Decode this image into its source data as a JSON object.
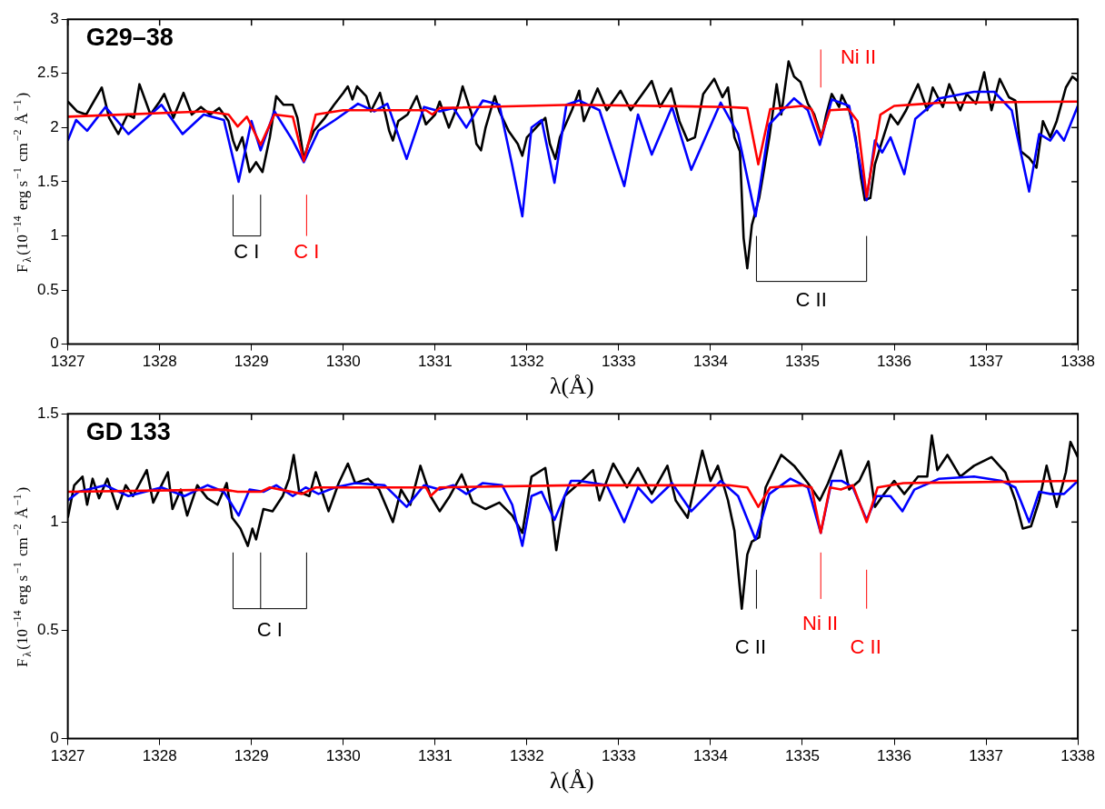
{
  "chart_data": [
    {
      "type": "line",
      "title": "G29–38",
      "xlabel": "λ(Å)",
      "ylabel": "F$_{λ}$(10$^{−14}$ erg s$^{−1}$ cm$^{−2}$ Å$^{−1}$)",
      "xlim": [
        1327,
        1338
      ],
      "xticks": [
        1327,
        1328,
        1329,
        1330,
        1331,
        1332,
        1333,
        1334,
        1335,
        1336,
        1337,
        1338
      ],
      "ylim": [
        0,
        3
      ],
      "yticks": [
        0,
        0.5,
        1,
        1.5,
        2,
        2.5,
        3
      ],
      "legend": false,
      "annotations": [
        "C I",
        "C I",
        "C II",
        "Ni II"
      ],
      "series": [
        {
          "color": "#000000",
          "x": [
            1327,
            1327.1,
            1327.2,
            1327.37,
            1327.45,
            1327.55,
            1327.65,
            1327.72,
            1327.78,
            1327.9,
            1328,
            1328.05,
            1328.15,
            1328.26,
            1328.35,
            1328.45,
            1328.55,
            1328.65,
            1328.75,
            1328.8,
            1328.84,
            1328.9,
            1328.95,
            1328.98,
            1329.05,
            1329.12,
            1329.2,
            1329.27,
            1329.35,
            1329.45,
            1329.5,
            1329.54,
            1329.57,
            1329.62,
            1329.68,
            1329.8,
            1329.9,
            1330,
            1330.05,
            1330.1,
            1330.15,
            1330.25,
            1330.3,
            1330.4,
            1330.46,
            1330.5,
            1330.54,
            1330.6,
            1330.7,
            1330.8,
            1330.9,
            1331,
            1331.05,
            1331.15,
            1331.25,
            1331.3,
            1331.4,
            1331.45,
            1331.5,
            1331.55,
            1331.65,
            1331.7,
            1331.8,
            1331.9,
            1331.95,
            1332,
            1332.1,
            1332.2,
            1332.25,
            1332.31,
            1332.36,
            1332.49,
            1332.57,
            1332.62,
            1332.77,
            1332.87,
            1333.02,
            1333.13,
            1333.36,
            1333.45,
            1333.57,
            1333.66,
            1333.75,
            1333.83,
            1333.92,
            1334.04,
            1334.13,
            1334.19,
            1334.26,
            1334.32,
            1334.36,
            1334.4,
            1334.45,
            1334.53,
            1334.58,
            1334.64,
            1334.72,
            1334.77,
            1334.85,
            1334.91,
            1334.98,
            1335.06,
            1335.13,
            1335.21,
            1335.26,
            1335.32,
            1335.4,
            1335.43,
            1335.51,
            1335.58,
            1335.64,
            1335.68,
            1335.74,
            1335.79,
            1335.87,
            1335.96,
            1336.04,
            1336.13,
            1336.21,
            1336.26,
            1336.36,
            1336.42,
            1336.53,
            1336.6,
            1336.72,
            1336.79,
            1336.89,
            1336.98,
            1337.06,
            1337.15,
            1337.25,
            1337.32,
            1337.38,
            1337.47,
            1337.55,
            1337.62,
            1337.7,
            1337.77,
            1337.87,
            1337.94,
            1338
          ],
          "values": [
            2.24,
            2.15,
            2.12,
            2.37,
            2.09,
            1.94,
            2.12,
            2.09,
            2.4,
            2.12,
            2.24,
            2.31,
            2.09,
            2.32,
            2.12,
            2.19,
            2.12,
            2.18,
            2.06,
            1.88,
            1.79,
            1.91,
            1.71,
            1.59,
            1.68,
            1.59,
            1.91,
            2.29,
            2.21,
            2.21,
            2.09,
            1.88,
            1.71,
            1.85,
            1.97,
            2.09,
            2.21,
            2.32,
            2.38,
            2.26,
            2.38,
            2.29,
            2.15,
            2.32,
            2.12,
            1.97,
            1.88,
            2.06,
            2.12,
            2.29,
            2.03,
            2.12,
            2.24,
            2.0,
            2.21,
            2.38,
            2.12,
            1.85,
            1.79,
            2.0,
            2.29,
            2.15,
            1.97,
            1.85,
            1.74,
            1.91,
            2.0,
            2.09,
            1.85,
            1.71,
            1.91,
            2.16,
            2.34,
            2.06,
            2.36,
            2.16,
            2.34,
            2.16,
            2.43,
            2.19,
            2.36,
            2.06,
            1.88,
            1.91,
            2.31,
            2.45,
            2.28,
            2.37,
            1.91,
            1.78,
            0.98,
            0.7,
            1.1,
            1.35,
            1.6,
            1.91,
            2.4,
            2.12,
            2.61,
            2.47,
            2.42,
            2.22,
            2.12,
            1.91,
            2.12,
            2.31,
            2.19,
            2.3,
            2.16,
            1.91,
            1.53,
            1.33,
            1.35,
            1.66,
            1.88,
            2.12,
            2.03,
            2.16,
            2.31,
            2.4,
            2.16,
            2.37,
            2.19,
            2.4,
            2.16,
            2.31,
            2.22,
            2.51,
            2.16,
            2.45,
            2.28,
            2.25,
            1.78,
            1.72,
            1.63,
            2.06,
            1.91,
            2.06,
            2.37,
            2.47,
            2.43
          ]
        },
        {
          "color": "#0000ff",
          "x": [
            1327,
            1327.09,
            1327.21,
            1327.41,
            1327.66,
            1328.02,
            1328.25,
            1328.48,
            1328.7,
            1328.86,
            1329,
            1329.1,
            1329.25,
            1329.45,
            1329.57,
            1329.73,
            1329.91,
            1330.16,
            1330.34,
            1330.48,
            1330.69,
            1330.88,
            1331.05,
            1331.2,
            1331.34,
            1331.52,
            1331.7,
            1331.84,
            1331.95,
            1332.05,
            1332.16,
            1332.3,
            1332.43,
            1332.57,
            1332.79,
            1333.06,
            1333.21,
            1333.36,
            1333.58,
            1333.79,
            1334.11,
            1334.3,
            1334.49,
            1334.64,
            1334.91,
            1335.06,
            1335.19,
            1335.32,
            1335.51,
            1335.7,
            1335.79,
            1335.87,
            1335.96,
            1336.11,
            1336.23,
            1336.49,
            1336.87,
            1337.09,
            1337.28,
            1337.47,
            1337.58,
            1337.7,
            1337.77,
            1337.85,
            1338
          ],
          "values": [
            1.88,
            2.07,
            1.97,
            2.19,
            1.94,
            2.21,
            1.94,
            2.12,
            2.07,
            1.5,
            2.06,
            1.79,
            2.15,
            1.88,
            1.68,
            1.97,
            2.07,
            2.22,
            2.15,
            2.22,
            1.71,
            2.19,
            2.15,
            2.18,
            2.0,
            2.25,
            2.21,
            1.65,
            1.18,
            2.0,
            2.07,
            1.49,
            2.21,
            2.25,
            2.16,
            1.46,
            2.12,
            1.75,
            2.19,
            1.61,
            2.23,
            1.94,
            1.18,
            2.03,
            2.27,
            2.16,
            1.84,
            2.26,
            2.2,
            1.33,
            1.88,
            1.77,
            1.91,
            1.57,
            2.08,
            2.27,
            2.33,
            2.33,
            2.16,
            1.41,
            1.94,
            1.88,
            1.97,
            1.88,
            2.2
          ]
        },
        {
          "color": "#ff0000",
          "x": [
            1327,
            1328.5,
            1328.75,
            1328.85,
            1328.95,
            1329.1,
            1329.25,
            1329.45,
            1329.57,
            1329.7,
            1330,
            1330.9,
            1330.97,
            1331.05,
            1332.5,
            1334.2,
            1334.4,
            1334.52,
            1334.65,
            1335,
            1335.1,
            1335.2,
            1335.3,
            1335.5,
            1335.6,
            1335.7,
            1335.85,
            1336,
            1336.5,
            1338
          ],
          "values": [
            2.1,
            2.15,
            2.12,
            2.01,
            2.1,
            1.84,
            2.12,
            2.1,
            1.69,
            2.12,
            2.16,
            2.16,
            2.12,
            2.18,
            2.21,
            2.19,
            2.18,
            1.66,
            2.17,
            2.2,
            2.17,
            1.91,
            2.16,
            2.17,
            2.06,
            1.36,
            2.12,
            2.2,
            2.23,
            2.24
          ]
        }
      ]
    },
    {
      "type": "line",
      "title": "GD 133",
      "xlabel": "λ(Å)",
      "ylabel": "F$_{λ}$(10$^{−14}$ erg s$^{−1}$ cm$^{−2}$ Å$^{−1}$)",
      "xlim": [
        1327,
        1338
      ],
      "xticks": [
        1327,
        1328,
        1329,
        1330,
        1331,
        1332,
        1333,
        1334,
        1335,
        1336,
        1337,
        1338
      ],
      "ylim": [
        0,
        1.5
      ],
      "yticks": [
        0,
        0.5,
        1,
        1.5
      ],
      "legend": false,
      "annotations": [
        "C I",
        "C II",
        "Ni II",
        "C II"
      ],
      "series": [
        {
          "color": "#000000",
          "x": [
            1327,
            1327.07,
            1327.16,
            1327.21,
            1327.27,
            1327.34,
            1327.43,
            1327.54,
            1327.63,
            1327.71,
            1327.86,
            1327.93,
            1328.02,
            1328.09,
            1328.14,
            1328.23,
            1328.3,
            1328.41,
            1328.52,
            1328.63,
            1328.73,
            1328.79,
            1328.88,
            1328.96,
            1329.01,
            1329.05,
            1329.13,
            1329.23,
            1329.34,
            1329.41,
            1329.46,
            1329.52,
            1329.63,
            1329.7,
            1329.77,
            1329.84,
            1329.95,
            1330.05,
            1330.13,
            1330.27,
            1330.39,
            1330.48,
            1330.54,
            1330.63,
            1330.73,
            1330.84,
            1330.95,
            1331.05,
            1331.16,
            1331.29,
            1331.41,
            1331.55,
            1331.7,
            1331.84,
            1331.95,
            1332.05,
            1332.2,
            1332.27,
            1332.32,
            1332.41,
            1332.57,
            1332.72,
            1332.79,
            1332.94,
            1333.09,
            1333.21,
            1333.36,
            1333.53,
            1333.62,
            1333.75,
            1333.91,
            1334,
            1334.08,
            1334.19,
            1334.26,
            1334.34,
            1334.4,
            1334.45,
            1334.53,
            1334.6,
            1334.77,
            1334.91,
            1335.06,
            1335.19,
            1335.28,
            1335.42,
            1335.51,
            1335.62,
            1335.72,
            1335.79,
            1335.89,
            1336,
            1336.11,
            1336.26,
            1336.36,
            1336.41,
            1336.47,
            1336.58,
            1336.72,
            1336.87,
            1337.06,
            1337.21,
            1337.32,
            1337.4,
            1337.49,
            1337.58,
            1337.66,
            1337.77,
            1337.87,
            1337.92,
            1338
          ],
          "values": [
            1.02,
            1.17,
            1.21,
            1.08,
            1.2,
            1.11,
            1.2,
            1.06,
            1.17,
            1.12,
            1.24,
            1.09,
            1.17,
            1.23,
            1.06,
            1.15,
            1.03,
            1.17,
            1.11,
            1.08,
            1.18,
            1.02,
            0.97,
            0.89,
            0.97,
            0.92,
            1.06,
            1.05,
            1.12,
            1.2,
            1.31,
            1.14,
            1.12,
            1.23,
            1.14,
            1.05,
            1.18,
            1.27,
            1.18,
            1.2,
            1.15,
            1.06,
            1.0,
            1.15,
            1.08,
            1.26,
            1.12,
            1.05,
            1.12,
            1.22,
            1.09,
            1.06,
            1.09,
            1.03,
            0.95,
            1.21,
            1.25,
            1.05,
            0.87,
            1.12,
            1.18,
            1.24,
            1.1,
            1.27,
            1.16,
            1.25,
            1.13,
            1.26,
            1.1,
            1.02,
            1.33,
            1.19,
            1.26,
            1.1,
            0.96,
            0.6,
            0.85,
            0.91,
            0.93,
            1.16,
            1.31,
            1.26,
            1.18,
            1.1,
            1.18,
            1.33,
            1.15,
            1.19,
            1.28,
            1.07,
            1.13,
            1.19,
            1.13,
            1.21,
            1.21,
            1.4,
            1.24,
            1.31,
            1.21,
            1.26,
            1.3,
            1.23,
            1.1,
            0.97,
            0.98,
            1.1,
            1.26,
            1.07,
            1.23,
            1.37,
            1.3
          ]
        },
        {
          "color": "#0000ff",
          "x": [
            1327,
            1327.12,
            1327.41,
            1327.66,
            1328.02,
            1328.27,
            1328.52,
            1328.7,
            1328.86,
            1328.98,
            1329.13,
            1329.27,
            1329.45,
            1329.59,
            1329.73,
            1329.91,
            1330.13,
            1330.45,
            1330.69,
            1330.88,
            1331.05,
            1331.2,
            1331.34,
            1331.52,
            1331.73,
            1331.84,
            1331.95,
            1332.05,
            1332.16,
            1332.3,
            1332.48,
            1332.57,
            1332.87,
            1333.06,
            1333.21,
            1333.36,
            1333.58,
            1333.79,
            1334.11,
            1334.3,
            1334.49,
            1334.64,
            1334.87,
            1335.06,
            1335.2,
            1335.32,
            1335.43,
            1335.55,
            1335.7,
            1335.81,
            1335.96,
            1336.09,
            1336.22,
            1336.49,
            1336.87,
            1337.17,
            1337.32,
            1337.47,
            1337.58,
            1337.7,
            1337.85,
            1338
          ],
          "values": [
            1.1,
            1.14,
            1.17,
            1.12,
            1.16,
            1.12,
            1.17,
            1.14,
            1.03,
            1.15,
            1.14,
            1.17,
            1.12,
            1.16,
            1.13,
            1.16,
            1.18,
            1.17,
            1.07,
            1.17,
            1.15,
            1.17,
            1.13,
            1.18,
            1.17,
            1.08,
            0.89,
            1.12,
            1.14,
            1.01,
            1.19,
            1.19,
            1.17,
            1.0,
            1.16,
            1.09,
            1.18,
            1.05,
            1.19,
            1.12,
            0.92,
            1.13,
            1.2,
            1.16,
            0.95,
            1.19,
            1.19,
            1.16,
            1.01,
            1.12,
            1.12,
            1.05,
            1.15,
            1.2,
            1.21,
            1.19,
            1.16,
            1.0,
            1.14,
            1.13,
            1.13,
            1.19
          ]
        },
        {
          "color": "#ff0000",
          "x": [
            1327,
            1328.7,
            1328.85,
            1329.1,
            1329.2,
            1329.55,
            1329.7,
            1330.9,
            1330.95,
            1331.05,
            1332.5,
            1334.2,
            1334.4,
            1334.52,
            1334.65,
            1335,
            1335.1,
            1335.2,
            1335.3,
            1335.42,
            1335.55,
            1335.7,
            1335.82,
            1336.1,
            1338
          ],
          "values": [
            1.14,
            1.15,
            1.14,
            1.14,
            1.16,
            1.13,
            1.16,
            1.16,
            1.12,
            1.16,
            1.17,
            1.17,
            1.16,
            1.07,
            1.16,
            1.17,
            1.16,
            0.95,
            1.16,
            1.15,
            1.17,
            1.0,
            1.16,
            1.18,
            1.19
          ]
        }
      ]
    }
  ]
}
